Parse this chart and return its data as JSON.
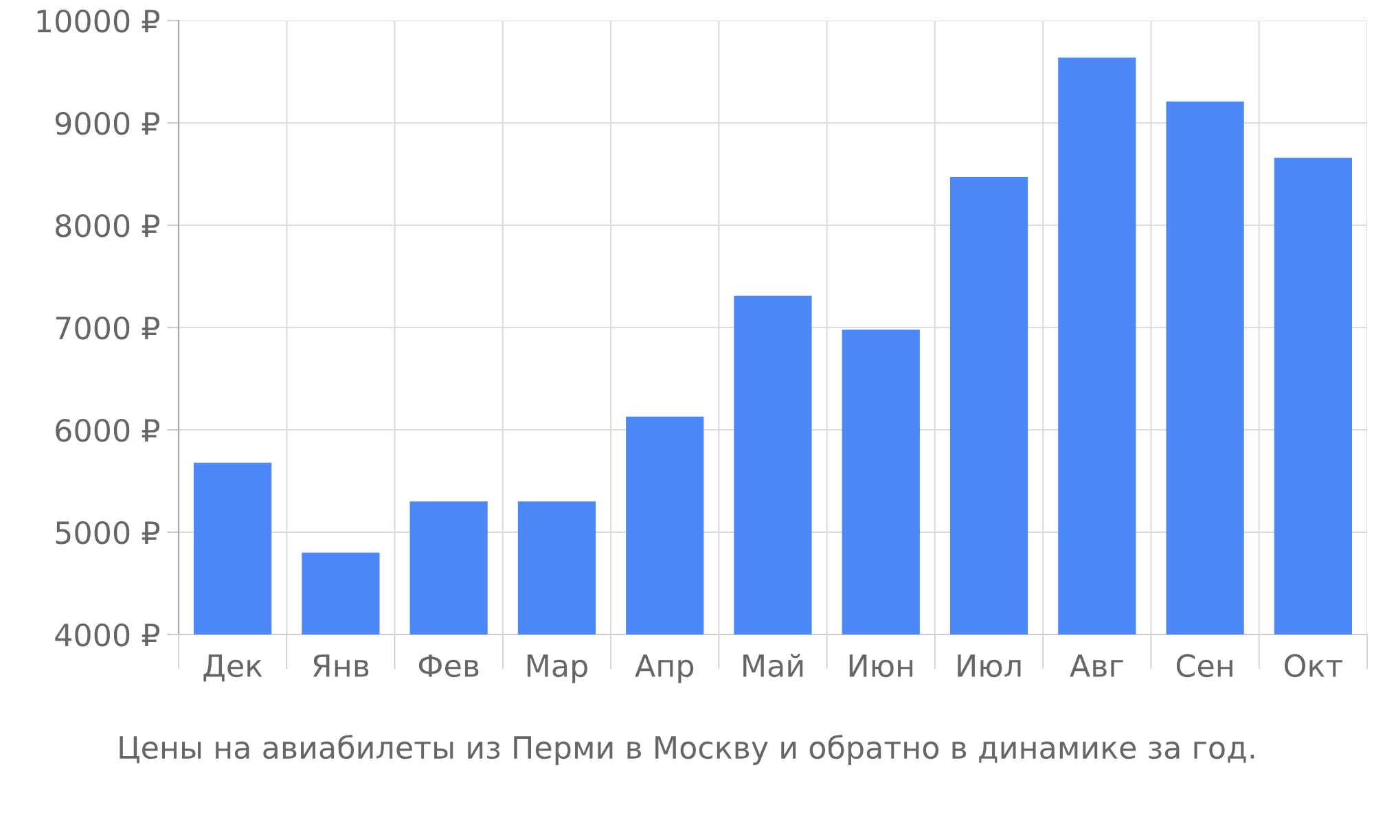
{
  "chart_data": {
    "type": "bar",
    "categories": [
      "Дек",
      "Янв",
      "Фев",
      "Мар",
      "Апр",
      "Май",
      "Июн",
      "Июл",
      "Авг",
      "Сен",
      "Окт"
    ],
    "values": [
      5680,
      4800,
      5300,
      5300,
      6130,
      7310,
      6980,
      8470,
      9640,
      9210,
      8660
    ],
    "color": "#4d88f8",
    "ylim": [
      4000,
      10000
    ],
    "yticks": [
      {
        "value": 4000,
        "label": "4000 ₽"
      },
      {
        "value": 5000,
        "label": "5000 ₽"
      },
      {
        "value": 6000,
        "label": "6000 ₽"
      },
      {
        "value": 7000,
        "label": "7000 ₽"
      },
      {
        "value": 8000,
        "label": "8000 ₽"
      },
      {
        "value": 9000,
        "label": "9000 ₽"
      },
      {
        "value": 10000,
        "label": "10000 ₽"
      }
    ],
    "grid": true,
    "annotations": [
      "Цены на авиабилеты из Перми в Москву и обратно в динамике за год."
    ]
  }
}
